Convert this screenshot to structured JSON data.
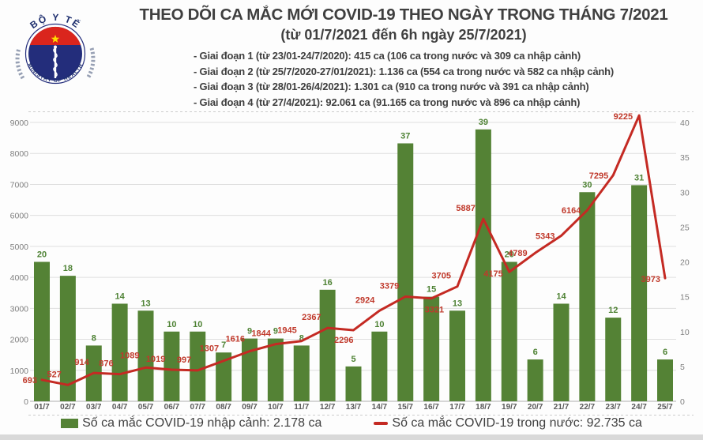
{
  "header": {
    "title": "THEO DÕI CA MẮC MỚI COVID-19 THEO NGÀY TRONG THÁNG 7/2021",
    "subtitle": "(từ 01/7/2021 đến 6h ngày 25/7/2021)",
    "bullets": [
      "- Giai đoạn 1 (từ 23/01-24/7/2020): 415 ca (106 ca trong nước và 309 ca nhập cảnh)",
      "- Giai đoạn 2 (từ 25/7/2020-27/01/2021): 1.136 ca (554 ca trong nước và 582 ca nhập cảnh)",
      "- Giai đoạn 3 (từ 28/01-26/4/2021): 1.301 ca (910 ca trong nước và 391 ca nhập cảnh)",
      "- Giai đoạn 4 (từ 27/4/2021): 92.061 ca (91.165 ca trong nước và 896 ca nhập cảnh)"
    ],
    "logo": {
      "top_text": "BỘ Y TẾ",
      "bottom_text": "MINISTRY OF HEALTH"
    }
  },
  "chart_data": {
    "type": "bar",
    "title": "THEO DÕI CA MẮC MỚI COVID-19 THEO NGÀY TRONG THÁNG 7/2021",
    "subtitle": "(từ 01/7/2021 đến 6h ngày 25/7/2021)",
    "categories": [
      "01/7",
      "02/7",
      "03/7",
      "04/7",
      "05/7",
      "06/7",
      "07/7",
      "08/7",
      "09/7",
      "10/7",
      "11/7",
      "12/7",
      "13/7",
      "14/7",
      "15/7",
      "16/7",
      "17/7",
      "18/7",
      "19/7",
      "20/7",
      "21/7",
      "22/7",
      "23/7",
      "24/7",
      "25/7"
    ],
    "series": [
      {
        "name": "Số ca mắc COVID-19 nhập cảnh",
        "type": "bar",
        "axis": "right",
        "values": [
          20,
          18,
          8,
          14,
          13,
          10,
          10,
          7,
          9,
          9,
          8,
          16,
          5,
          10,
          37,
          15,
          13,
          39,
          20,
          6,
          14,
          30,
          12,
          31,
          6
        ]
      },
      {
        "name": "Số ca mắc COVID-19 trong nước",
        "type": "line",
        "axis": "left",
        "values": [
          693,
          527,
          914,
          876,
          1089,
          1019,
          997,
          1307,
          1616,
          1844,
          1945,
          2367,
          2296,
          2924,
          3379,
          3321,
          3705,
          5887,
          4175,
          4789,
          5343,
          6164,
          7295,
          9225,
          3973
        ]
      }
    ],
    "left_axis": {
      "min": 0,
      "max": 9000,
      "step": 1000
    },
    "right_axis": {
      "min": 0,
      "max": 40,
      "step": 5
    },
    "grid": true,
    "legend_position": "bottom"
  },
  "legend": {
    "imported": "Số ca mắc COVID-19 nhập cảnh: 2.178 ca",
    "domestic": "Số ca mắc COVID-19 trong nước: 92.735 ca"
  },
  "colors": {
    "bar": "#548235",
    "bar_label": "#4e8234",
    "line": "#c42a23",
    "line_label": "#c0392b",
    "axis_label": "#7f7f7f",
    "x_label": "#595959",
    "grid": "#dedede",
    "baseline": "#bfbfbf",
    "title_text": "#3f3f3f",
    "logo_navy": "#232d7b",
    "logo_red": "#da251d",
    "logo_gold": "#ffde00"
  }
}
